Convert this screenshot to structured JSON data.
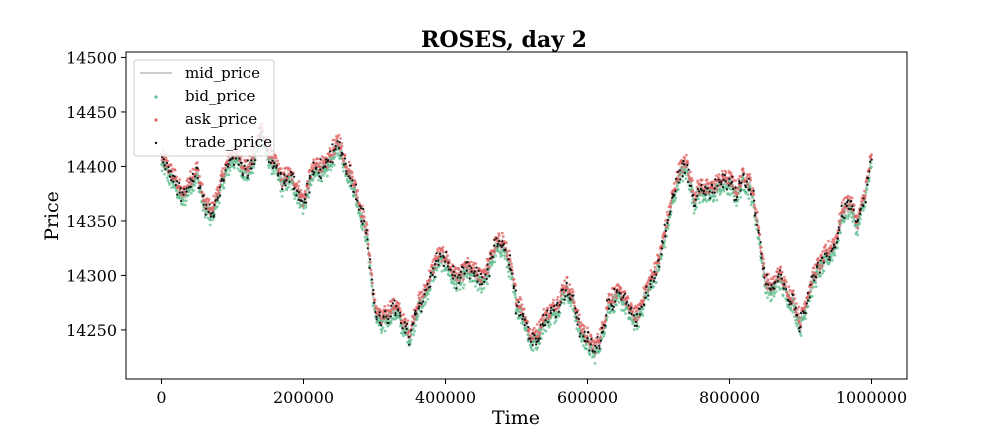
{
  "chart_data": {
    "type": "scatter",
    "title": "ROSES, day 2",
    "xlabel": "Time",
    "ylabel": "Price",
    "xlim": [
      -50000,
      1050000
    ],
    "ylim": [
      14205,
      14505
    ],
    "xticks": [
      0,
      200000,
      400000,
      600000,
      800000,
      1000000
    ],
    "yticks": [
      14250,
      14300,
      14350,
      14400,
      14450,
      14500
    ],
    "grid": false,
    "legend_position": "top-left",
    "series": [
      {
        "name": "mid_price",
        "kind": "line",
        "color": "#aaaaaa"
      },
      {
        "name": "bid_price",
        "kind": "scatter",
        "color": "#5fbf8f"
      },
      {
        "name": "ask_price",
        "kind": "scatter",
        "color": "#e06060"
      },
      {
        "name": "trade_price",
        "kind": "scatter",
        "color": "#111111"
      }
    ],
    "x": [
      0,
      10000,
      20000,
      30000,
      40000,
      50000,
      60000,
      70000,
      80000,
      90000,
      100000,
      110000,
      120000,
      130000,
      140000,
      150000,
      160000,
      170000,
      180000,
      190000,
      200000,
      210000,
      220000,
      230000,
      240000,
      250000,
      260000,
      270000,
      280000,
      290000,
      300000,
      310000,
      320000,
      330000,
      340000,
      350000,
      360000,
      370000,
      380000,
      390000,
      400000,
      410000,
      420000,
      430000,
      440000,
      450000,
      460000,
      470000,
      480000,
      490000,
      500000,
      510000,
      520000,
      530000,
      540000,
      550000,
      560000,
      570000,
      580000,
      590000,
      600000,
      610000,
      620000,
      630000,
      640000,
      650000,
      660000,
      670000,
      680000,
      690000,
      700000,
      710000,
      720000,
      730000,
      740000,
      750000,
      760000,
      770000,
      780000,
      790000,
      800000,
      810000,
      820000,
      830000,
      840000,
      850000,
      860000,
      870000,
      880000,
      890000,
      900000,
      910000,
      920000,
      930000,
      940000,
      950000,
      960000,
      970000,
      980000,
      990000,
      1000000
    ],
    "mid_price": [
      14405,
      14395,
      14385,
      14370,
      14385,
      14395,
      14365,
      14355,
      14375,
      14395,
      14410,
      14405,
      14395,
      14405,
      14435,
      14410,
      14400,
      14385,
      14390,
      14380,
      14365,
      14390,
      14400,
      14395,
      14410,
      14420,
      14400,
      14385,
      14360,
      14335,
      14270,
      14255,
      14265,
      14270,
      14255,
      14245,
      14270,
      14280,
      14300,
      14315,
      14315,
      14300,
      14295,
      14305,
      14300,
      14295,
      14305,
      14325,
      14330,
      14310,
      14275,
      14265,
      14240,
      14245,
      14260,
      14265,
      14275,
      14290,
      14275,
      14250,
      14240,
      14230,
      14245,
      14275,
      14280,
      14280,
      14265,
      14260,
      14280,
      14295,
      14310,
      14340,
      14370,
      14395,
      14400,
      14370,
      14380,
      14375,
      14380,
      14385,
      14385,
      14375,
      14390,
      14380,
      14345,
      14295,
      14285,
      14300,
      14285,
      14275,
      14255,
      14280,
      14300,
      14310,
      14320,
      14330,
      14360,
      14365,
      14345,
      14370,
      14405
    ]
  }
}
